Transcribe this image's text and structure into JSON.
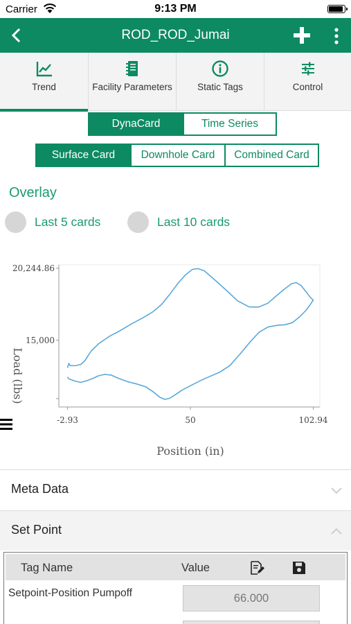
{
  "status_bar": {
    "carrier": "Carrier",
    "time": "9:13 PM"
  },
  "app_bar": {
    "title": "ROD_ROD_Jumai"
  },
  "tabs": [
    {
      "label": "Trend",
      "icon": "trend-chart-icon",
      "active": true
    },
    {
      "label": "Facility Parameters",
      "icon": "facility-parameters-icon",
      "active": false
    },
    {
      "label": "Static Tags",
      "icon": "info-icon",
      "active": false
    },
    {
      "label": "Control",
      "icon": "sliders-icon",
      "active": false
    }
  ],
  "view_toggle": {
    "options": [
      "DynaCard",
      "Time Series"
    ],
    "selected": "DynaCard"
  },
  "card_type": {
    "options": [
      "Surface Card",
      "Downhole Card",
      "Combined Card"
    ],
    "selected": "Surface Card"
  },
  "overlay": {
    "title": "Overlay",
    "options": [
      "Last 5 cards",
      "Last 10 cards"
    ]
  },
  "colors": {
    "primary": "#0d8a62",
    "accent_text": "#1a9b72",
    "curve": "#5aa8d8"
  },
  "chart_data": {
    "type": "line",
    "xlabel": "Position (in)",
    "ylabel": "Load (lbs)",
    "x_ticks": [
      "-2.93",
      "50",
      "102.94"
    ],
    "y_ticks": [
      "20,244.86",
      "15,000"
    ],
    "xlim": [
      -2.93,
      102.94
    ],
    "ylim": [
      10700,
      20244.86
    ],
    "grid": false,
    "series": [
      {
        "x": [
          -2.93,
          -2.4,
          -1.7,
          0.3,
          2.8,
          4.6,
          7.2,
          10.5,
          13.4,
          15.8,
          18.1,
          21.0,
          24.9,
          29.6,
          33.8,
          37.6,
          41.3,
          44.8,
          47.8,
          50.9,
          53.2,
          55.9,
          60.3,
          65.4,
          70.3,
          75.3,
          79.4,
          83.4,
          87.1,
          90.6,
          93.5,
          95.6,
          97.7,
          99.8,
          101.6,
          102.94,
          101.9,
          100.0,
          97.1,
          94.0,
          90.9,
          87.4,
          83.4,
          79.6,
          75.6,
          71.2,
          67.0,
          62.6,
          58.2,
          54.2,
          50.5,
          46.5,
          43.6,
          41.1,
          39.0,
          36.9,
          34.2,
          30.8,
          26.9,
          23.0,
          19.0,
          15.8,
          13.1,
          10.5,
          7.9,
          5.1,
          2.8,
          0.3,
          -1.5,
          -2.4,
          -2.93
        ],
        "y": [
          12998,
          13317,
          13159,
          13147,
          13247,
          13522,
          14210,
          14757,
          15092,
          15359,
          15549,
          15829,
          16218,
          16645,
          17074,
          17616,
          18389,
          19181,
          19752,
          20168,
          20227,
          20073,
          19438,
          18657,
          17880,
          17431,
          17424,
          17703,
          18250,
          18740,
          19116,
          19209,
          18986,
          18541,
          18140,
          17934,
          17676,
          17217,
          16713,
          16290,
          16139,
          16096,
          15968,
          15589,
          14857,
          13963,
          13161,
          12677,
          12357,
          12051,
          11730,
          11375,
          11049,
          10776,
          10698,
          10846,
          11225,
          11612,
          11823,
          11990,
          12234,
          12474,
          12520,
          12420,
          12215,
          12043,
          11938,
          12031,
          12141,
          12195,
          12333
        ]
      }
    ]
  },
  "meta_data": {
    "title": "Meta Data",
    "expanded": false
  },
  "set_point": {
    "title": "Set Point",
    "expanded": true,
    "columns": {
      "tag_name": "Tag Name",
      "value": "Value"
    },
    "rows": [
      {
        "tag": "Setpoint-Position Pumpoff",
        "value": "66.000"
      }
    ]
  }
}
